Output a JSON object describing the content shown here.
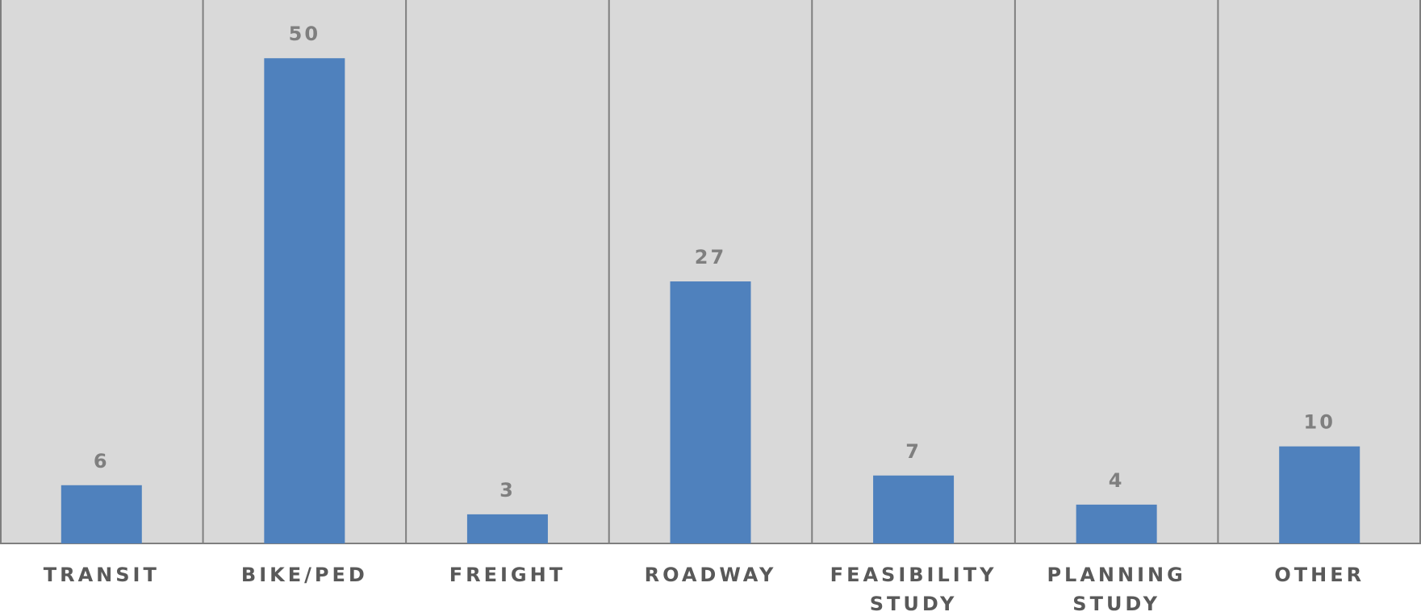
{
  "chart_data": {
    "type": "bar",
    "categories": [
      "TRANSIT",
      "BIKE/PED",
      "FREIGHT",
      "ROADWAY",
      "FEASIBILITY STUDY",
      "PLANNING STUDY",
      "OTHER"
    ],
    "values": [
      6,
      50,
      3,
      27,
      7,
      4,
      10
    ],
    "title": "",
    "xlabel": "",
    "ylabel": "",
    "ylim": [
      0,
      56
    ],
    "grid": "vertical separators between categories",
    "legend": "none",
    "data_labels": true,
    "colors": {
      "bar": "#4f81bd",
      "plot_background": "#d9d9d9",
      "separator": "#7f7f7f",
      "value_label": "#7f7f7f",
      "category_label": "#595959"
    }
  }
}
